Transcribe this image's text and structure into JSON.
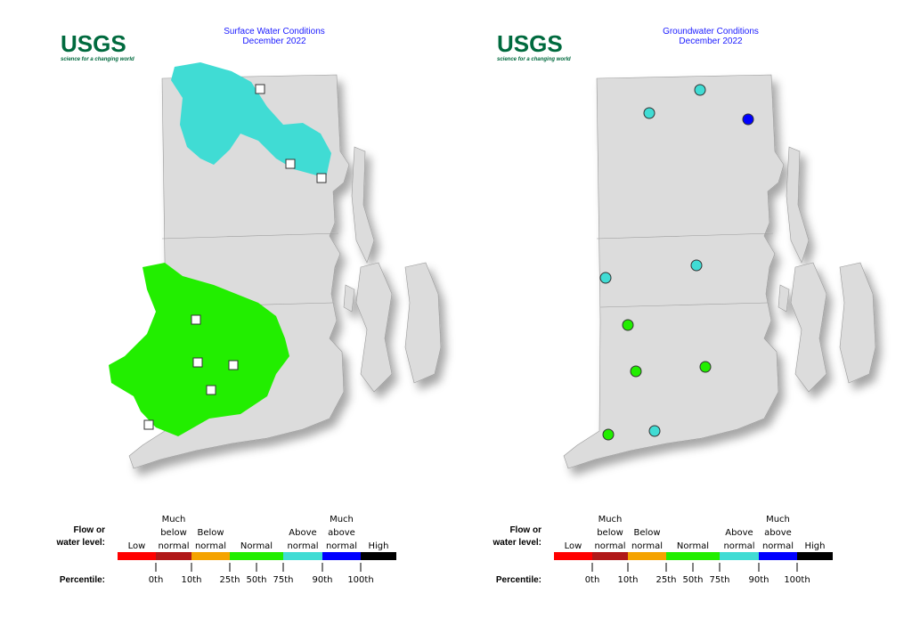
{
  "panels": [
    {
      "logo": "USGS",
      "tagline": "science for a changing world",
      "title": "Surface Water Conditions",
      "subtitle": "December 2022"
    },
    {
      "logo": "USGS",
      "tagline": "science for a changing world",
      "title": "Groundwater Conditions",
      "subtitle": "December 2022"
    }
  ],
  "legend": {
    "row_label": [
      "Flow or",
      "water level:"
    ],
    "classes": [
      {
        "label": [
          "Low"
        ],
        "color": "#ff0000"
      },
      {
        "label": [
          "Much",
          "below",
          "normal"
        ],
        "color": "#b01818"
      },
      {
        "label": [
          "Below",
          "normal"
        ],
        "color": "#f5a300"
      },
      {
        "label": [
          "Normal"
        ],
        "color": "#22ee00"
      },
      {
        "label": [
          "Above",
          "normal"
        ],
        "color": "#40dcd4"
      },
      {
        "label": [
          "Much",
          "above",
          "normal"
        ],
        "color": "#0000ff"
      },
      {
        "label": [
          "High"
        ],
        "color": "#000000"
      }
    ],
    "percentile_label": "Percentile:",
    "percentiles": [
      "0th",
      "10th",
      "25th",
      "50th",
      "75th",
      "90th",
      "100th"
    ]
  }
}
